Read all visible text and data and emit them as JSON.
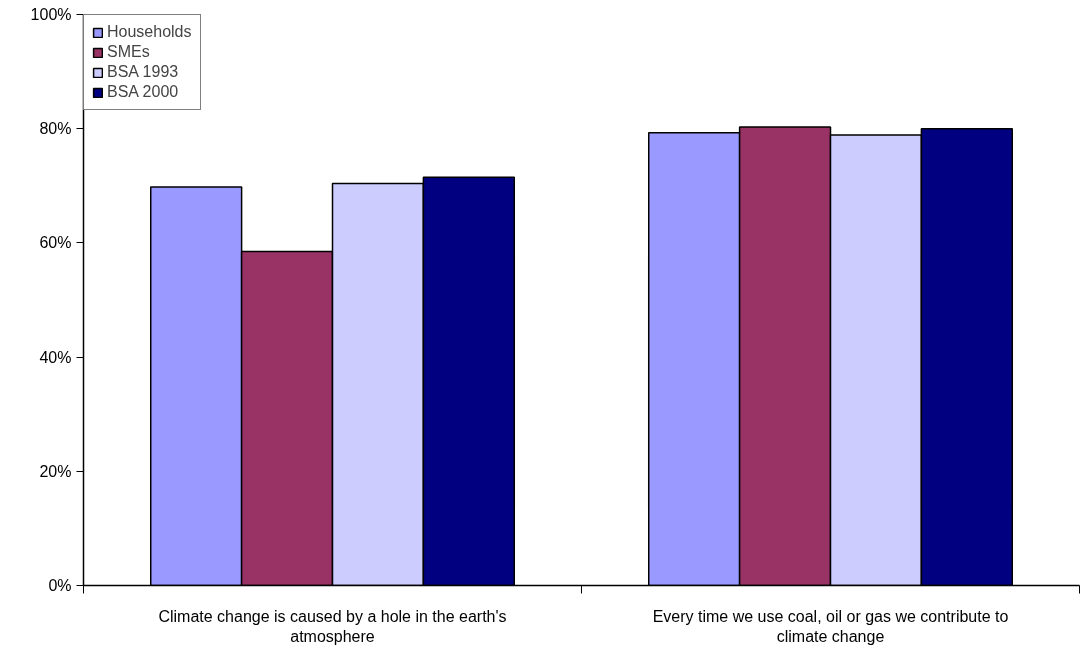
{
  "chart_data": {
    "type": "bar",
    "categories": [
      "Climate change is caused by a hole in the earth's atmosphere",
      "Every time we use coal, oil or gas we contribute to climate change"
    ],
    "series": [
      {
        "name": "Households",
        "color": "#9999ff",
        "values": [
          69.8,
          79.3
        ]
      },
      {
        "name": "SMEs",
        "color": "#993366",
        "values": [
          58.5,
          80.3
        ]
      },
      {
        "name": "BSA 1993",
        "color": "#ccccff",
        "values": [
          70.4,
          78.9
        ]
      },
      {
        "name": "BSA 2000",
        "color": "#000080",
        "values": [
          71.5,
          80.0
        ]
      }
    ],
    "ylim": [
      0,
      100
    ],
    "yticks": [
      {
        "value": 0,
        "label": "0%"
      },
      {
        "value": 20,
        "label": "20%"
      },
      {
        "value": 40,
        "label": "40%"
      },
      {
        "value": 60,
        "label": "60%"
      },
      {
        "value": 80,
        "label": "80%"
      },
      {
        "value": 100,
        "label": "100%"
      }
    ],
    "grid": false,
    "legend": "top left"
  }
}
